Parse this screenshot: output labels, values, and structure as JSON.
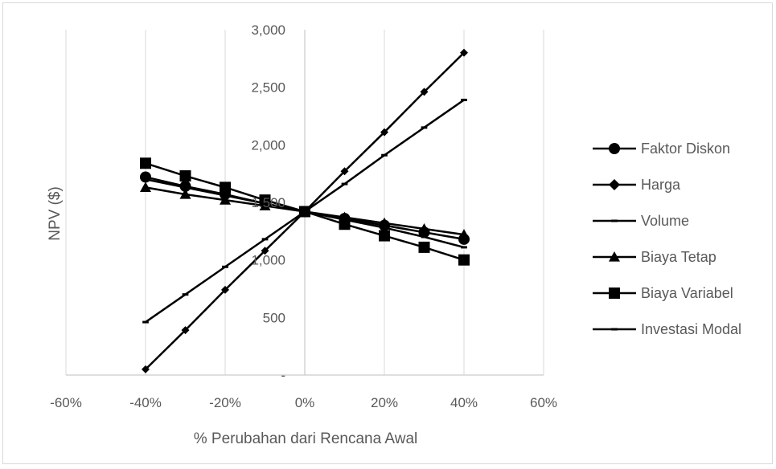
{
  "chart_data": {
    "type": "line",
    "title": "",
    "xlabel": "% Perubahan dari Rencana Awal",
    "ylabel": "NPV ($)",
    "xlim": [
      -0.6,
      0.6
    ],
    "ylim": [
      0,
      3000
    ],
    "x_ticks": [
      -0.6,
      -0.4,
      -0.2,
      0,
      0.2,
      0.4,
      0.6
    ],
    "x_tick_labels": [
      "-60%",
      "-40%",
      "-20%",
      "0%",
      "20%",
      "40%",
      "60%"
    ],
    "y_ticks": [
      0,
      500,
      1000,
      1500,
      2000,
      2500,
      3000
    ],
    "y_tick_labels": [
      "-",
      "500",
      "1,000",
      "1,500",
      "2,000",
      "2,500",
      "3,000"
    ],
    "grid": "vertical",
    "legend_position": "right",
    "x": [
      -0.4,
      -0.3,
      -0.2,
      -0.1,
      0,
      0.1,
      0.2,
      0.3,
      0.4
    ],
    "series": [
      {
        "name": "Faktor Diskon",
        "marker": "circle",
        "values": [
          1720,
          1640,
          1570,
          1490,
          1420,
          1360,
          1300,
          1240,
          1180
        ]
      },
      {
        "name": "Harga",
        "marker": "diamond",
        "values": [
          50,
          390,
          740,
          1080,
          1420,
          1770,
          2110,
          2460,
          2800
        ]
      },
      {
        "name": "Volume",
        "marker": "dash",
        "values": [
          460,
          700,
          940,
          1180,
          1420,
          1660,
          1910,
          2150,
          2390
        ]
      },
      {
        "name": "Biaya Tetap",
        "marker": "triangle",
        "values": [
          1630,
          1570,
          1520,
          1470,
          1420,
          1370,
          1320,
          1270,
          1220
        ]
      },
      {
        "name": "Biaya Variabel",
        "marker": "square",
        "values": [
          1840,
          1730,
          1630,
          1520,
          1420,
          1310,
          1210,
          1110,
          1000
        ]
      },
      {
        "name": "Investasi Modal",
        "marker": "dash",
        "values": [
          1700,
          1630,
          1560,
          1490,
          1420,
          1350,
          1280,
          1200,
          1110
        ]
      }
    ],
    "colors": {
      "line": "#000000",
      "grid": "#d9d9d9",
      "axis": "#bfbfbf",
      "text": "#595959"
    }
  }
}
